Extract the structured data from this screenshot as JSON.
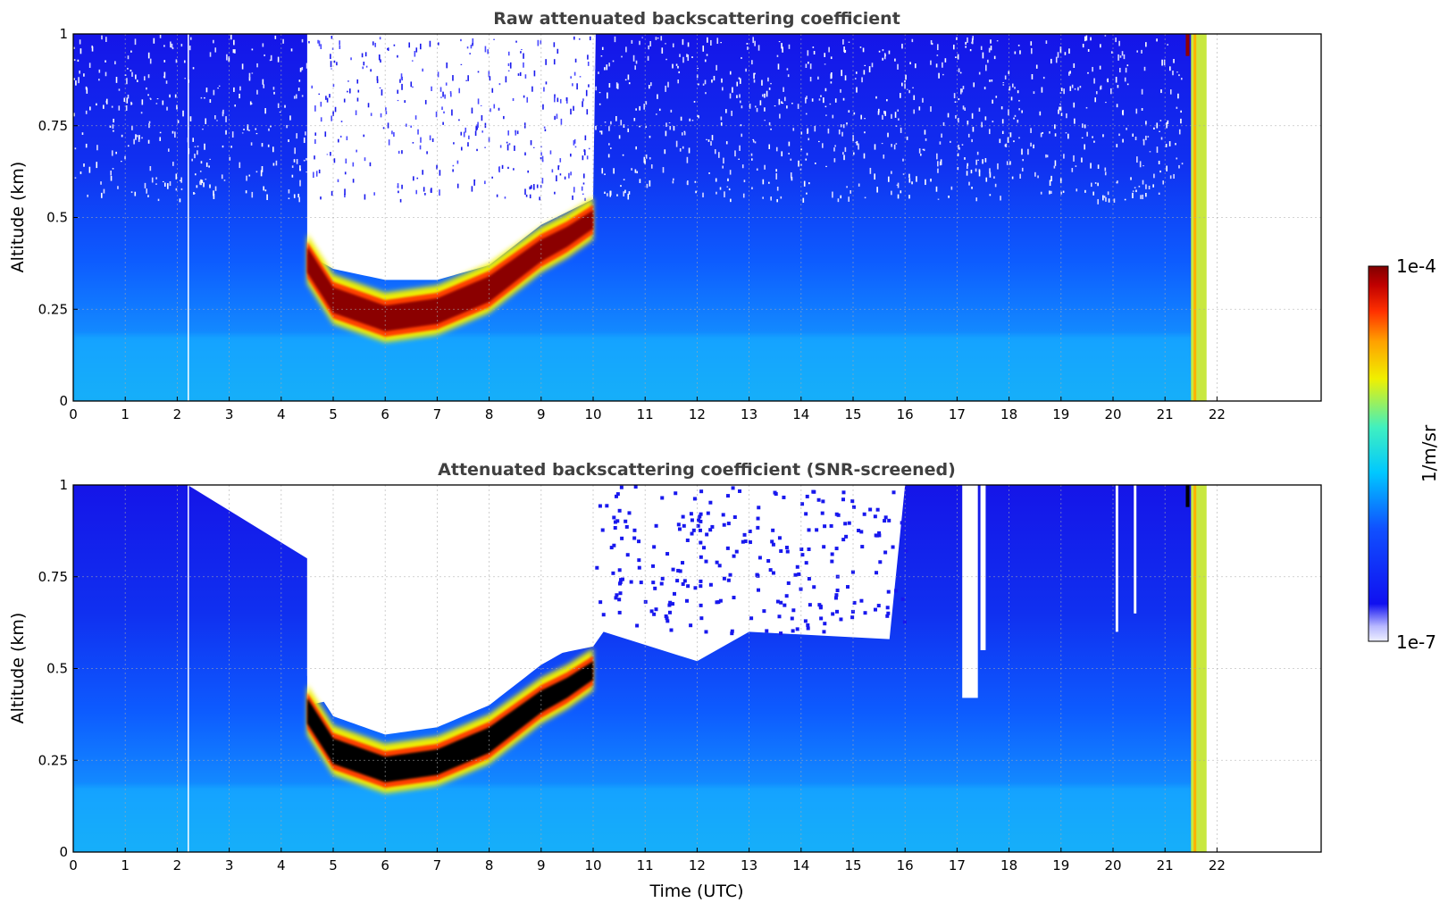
{
  "chart_data": [
    {
      "type": "heatmap",
      "title": "Raw attenuated backscattering coefficient",
      "xlabel": "",
      "ylabel": "Altitude (km)",
      "xlim": [
        0,
        24
      ],
      "ylim": [
        0,
        1
      ],
      "x_ticks": [
        "0",
        "1",
        "2",
        "3",
        "4",
        "5",
        "6",
        "7",
        "8",
        "9",
        "10",
        "11",
        "12",
        "13",
        "14",
        "15",
        "16",
        "17",
        "18",
        "19",
        "20",
        "21",
        "22"
      ],
      "y_ticks": [
        "0",
        "0.25",
        "0.5",
        "0.75",
        "1"
      ],
      "grid": true,
      "features": {
        "cloud_base_km": {
          "t": [
            4.5,
            5,
            6,
            7,
            8,
            9,
            9.5,
            10
          ],
          "z": [
            0.35,
            0.24,
            0.19,
            0.21,
            0.27,
            0.38,
            0.42,
            0.47
          ]
        },
        "fog_top_km": {
          "t": [
            4.5,
            5,
            6,
            7,
            8,
            9,
            10
          ],
          "z": [
            0.4,
            0.36,
            0.33,
            0.33,
            0.37,
            0.48,
            0.55
          ]
        },
        "rain_spike_t": [
          21.5,
          21.8
        ]
      }
    },
    {
      "type": "heatmap",
      "title": "Attenuated backscattering coefficient (SNR-screened)",
      "xlabel": "Time (UTC)",
      "ylabel": "Altitude (km)",
      "xlim": [
        0,
        24
      ],
      "ylim": [
        0,
        1
      ],
      "x_ticks": [
        "0",
        "1",
        "2",
        "3",
        "4",
        "5",
        "6",
        "7",
        "8",
        "9",
        "10",
        "11",
        "12",
        "13",
        "14",
        "15",
        "16",
        "17",
        "18",
        "19",
        "20",
        "21",
        "22"
      ],
      "y_ticks": [
        "0",
        "0.25",
        "0.5",
        "0.75",
        "1"
      ],
      "grid": true,
      "features": {
        "cloud_base_km": {
          "t": [
            4.5,
            5,
            6,
            7,
            8,
            9,
            9.5,
            10
          ],
          "z": [
            0.35,
            0.24,
            0.19,
            0.21,
            0.27,
            0.38,
            0.42,
            0.47
          ]
        },
        "screened_top_km": {
          "t": [
            0,
            2.2,
            4.5,
            4.5,
            10,
            10.2,
            12,
            13,
            15.7,
            16,
            21.4
          ],
          "z": [
            1.0,
            1.0,
            0.8,
            0.4,
            0.56,
            0.6,
            0.52,
            0.6,
            0.58,
            1.0,
            1.0
          ]
        },
        "rain_spike_t": [
          21.5,
          21.8
        ]
      }
    }
  ],
  "colorbar": {
    "label": "1/m/sr",
    "max_label": "1e-4",
    "min_label": "1e-7",
    "scale": "log",
    "colors": [
      "#eef0ff",
      "#1010f0",
      "#1050ff",
      "#00c8ff",
      "#40f0c0",
      "#f0f000",
      "#ffa000",
      "#ff3000",
      "#800000"
    ]
  }
}
